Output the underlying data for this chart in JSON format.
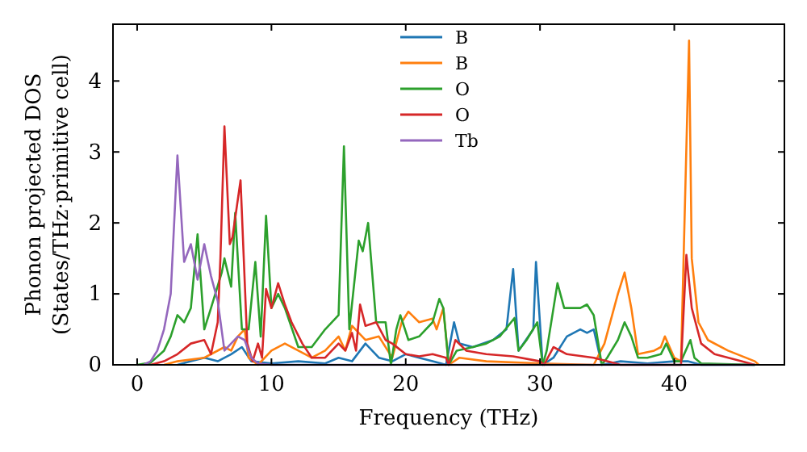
{
  "chart_data": {
    "type": "line",
    "xlabel": "Frequency (THz)",
    "ylabel": "Phonon projected DOS\n(States/THz·primitive cell)",
    "xlim": [
      -1.8,
      48.2
    ],
    "ylim": [
      0,
      4.8
    ],
    "xticks": [
      0,
      10,
      20,
      30,
      40
    ],
    "yticks": [
      0,
      1,
      2,
      3,
      4
    ],
    "legend": "top",
    "grid": false,
    "series": [
      {
        "name": "B",
        "color": "#1f77b4",
        "x": [
          3,
          4,
          5,
          6,
          7,
          7.8,
          8.5,
          10,
          12,
          14,
          15,
          16,
          17,
          18,
          19,
          20,
          21,
          22,
          23,
          23.6,
          24,
          25,
          26.5,
          27.5,
          28,
          28.4,
          29.5,
          29.7,
          30.2,
          31,
          32,
          33,
          33.5,
          34,
          34.6,
          36,
          38,
          40,
          41,
          42,
          46
        ],
        "values": [
          0,
          0.05,
          0.1,
          0.05,
          0.15,
          0.25,
          0.05,
          0.02,
          0.05,
          0.02,
          0.1,
          0.05,
          0.3,
          0.1,
          0.05,
          0.15,
          0.1,
          0.05,
          0,
          0.6,
          0.3,
          0.25,
          0.35,
          0.5,
          1.35,
          0.2,
          0.5,
          1.45,
          0,
          0.1,
          0.4,
          0.5,
          0.45,
          0.5,
          0,
          0.05,
          0.02,
          0.05,
          0.05,
          0,
          0
        ]
      },
      {
        "name": "B",
        "color": "#ff7f0e",
        "x": [
          2,
          3,
          5,
          6.5,
          7,
          7.5,
          8,
          8.3,
          9,
          10,
          11,
          12,
          13,
          14,
          15,
          15.5,
          16,
          17,
          18,
          19,
          19.7,
          20.2,
          21,
          22,
          22.3,
          22.8,
          23.2,
          24,
          26,
          30,
          34,
          34.8,
          35.8,
          36.3,
          36.8,
          37.3,
          38.5,
          39,
          39.3,
          40,
          40.5,
          41.1,
          41.3,
          41.8,
          42.5,
          44,
          46,
          46.3
        ],
        "values": [
          0,
          0.05,
          0.1,
          0.25,
          0.2,
          0.4,
          0.5,
          0.1,
          0,
          0.2,
          0.3,
          0.2,
          0.1,
          0.2,
          0.4,
          0.2,
          0.55,
          0.35,
          0.4,
          0.1,
          0.6,
          0.75,
          0.6,
          0.65,
          0.5,
          0.8,
          0,
          0.1,
          0.05,
          0.02,
          0,
          0.3,
          1.0,
          1.3,
          0.8,
          0.15,
          0.2,
          0.25,
          0.4,
          0.1,
          0.05,
          4.57,
          1.5,
          0.6,
          0.35,
          0.2,
          0.05,
          0
        ]
      },
      {
        "name": "O",
        "color": "#2ca02c",
        "x": [
          0,
          1,
          2,
          2.5,
          3,
          3.5,
          4,
          4.5,
          5,
          5.5,
          6.3,
          6.5,
          7,
          7.3,
          7.8,
          8.3,
          8.8,
          9.2,
          9.6,
          10,
          10.5,
          11,
          12,
          13,
          14,
          15,
          15.4,
          15.8,
          16.5,
          16.8,
          17.2,
          17.8,
          18.5,
          18.9,
          19.3,
          19.6,
          20.2,
          21,
          22,
          22.5,
          22.8,
          23.2,
          23.8,
          25,
          26,
          27,
          28.1,
          28.4,
          29,
          29.8,
          30.2,
          30.5,
          31.3,
          31.8,
          33,
          33.5,
          34,
          34.6,
          35,
          35.8,
          36.3,
          36.8,
          37.3,
          38,
          39,
          39.4,
          40,
          40.5,
          41.2,
          41.5,
          42,
          46
        ],
        "values": [
          0,
          0.03,
          0.2,
          0.4,
          0.7,
          0.6,
          0.8,
          1.84,
          0.5,
          0.8,
          1.3,
          1.5,
          1.1,
          2.14,
          0.5,
          0.5,
          1.45,
          0.4,
          2.1,
          0.8,
          1.0,
          0.8,
          0.25,
          0.25,
          0.5,
          0.7,
          3.08,
          0.5,
          1.75,
          1.6,
          2.0,
          0.6,
          0.6,
          0,
          0.5,
          0.7,
          0.35,
          0.4,
          0.6,
          0.93,
          0.8,
          0,
          0.2,
          0.25,
          0.3,
          0.4,
          0.66,
          0.2,
          0.35,
          0.6,
          0,
          0.2,
          1.15,
          0.8,
          0.8,
          0.85,
          0.7,
          0,
          0.1,
          0.35,
          0.6,
          0.4,
          0.1,
          0.1,
          0.15,
          0.3,
          0.05,
          0.05,
          0.35,
          0.1,
          0.02,
          0
        ]
      },
      {
        "name": "O",
        "color": "#d62728",
        "x": [
          1,
          2,
          3,
          4,
          5,
          5.5,
          6,
          6.2,
          6.5,
          6.9,
          7.1,
          7.7,
          8.2,
          8.6,
          9,
          9.3,
          9.6,
          10,
          10.5,
          11,
          11.5,
          12.3,
          13,
          14,
          15,
          15.5,
          16,
          16.3,
          16.6,
          17,
          17.8,
          18.5,
          19,
          20,
          21,
          22,
          23,
          23.2,
          23.7,
          24.5,
          26,
          28,
          30,
          30.3,
          31,
          32,
          34,
          35,
          36,
          40.5,
          40.9,
          41.3,
          42,
          43,
          45,
          46
        ],
        "values": [
          0,
          0.05,
          0.15,
          0.3,
          0.35,
          0.15,
          0.6,
          1.5,
          3.36,
          1.7,
          1.8,
          2.6,
          0.3,
          0.05,
          0.3,
          0.1,
          1.07,
          0.8,
          1.15,
          0.85,
          0.6,
          0.3,
          0.1,
          0.1,
          0.3,
          0.2,
          0.45,
          0.2,
          0.85,
          0.55,
          0.6,
          0.35,
          0.3,
          0.15,
          0.12,
          0.15,
          0.1,
          0,
          0.35,
          0.2,
          0.15,
          0.12,
          0.05,
          0,
          0.25,
          0.15,
          0.1,
          0.05,
          0,
          0,
          1.55,
          0.8,
          0.3,
          0.15,
          0.05,
          0
        ]
      },
      {
        "name": "Tb",
        "color": "#9467bd",
        "x": [
          0.5,
          1,
          1.5,
          2,
          2.5,
          3,
          3.5,
          4,
          4.5,
          5,
          5.5,
          6,
          6.5,
          7,
          7.5,
          8,
          8.5,
          9,
          10,
          46
        ],
        "values": [
          0,
          0.05,
          0.2,
          0.5,
          1.0,
          2.95,
          1.45,
          1.7,
          1.2,
          1.7,
          1.25,
          0.9,
          0.2,
          0.3,
          0.4,
          0.35,
          0.1,
          0.02,
          0,
          0
        ]
      }
    ]
  }
}
